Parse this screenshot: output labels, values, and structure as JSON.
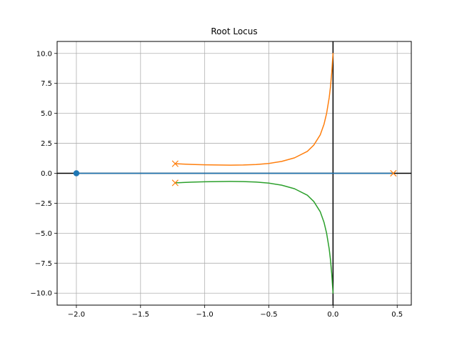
{
  "chart_data": {
    "type": "line",
    "title": "Root Locus",
    "xlabel": "",
    "ylabel": "",
    "xlim": [
      -2.15,
      0.61
    ],
    "ylim": [
      -11.0,
      11.0
    ],
    "grid": true,
    "xticks": [
      -2.0,
      -1.5,
      -1.0,
      -0.5,
      0.0,
      0.5
    ],
    "xtick_labels": [
      "−2.0",
      "−1.5",
      "−1.0",
      "−0.5",
      "0.0",
      "0.5"
    ],
    "yticks": [
      -10.0,
      -7.5,
      -5.0,
      -2.5,
      0.0,
      2.5,
      5.0,
      7.5,
      10.0
    ],
    "ytick_labels": [
      "−10.0",
      "−7.5",
      "−5.0",
      "−2.5",
      "0.0",
      "2.5",
      "5.0",
      "7.5",
      "10.0"
    ],
    "reference_lines": {
      "x": 0,
      "y": 0,
      "color": "#000000"
    },
    "series": [
      {
        "color": "#1f77b4",
        "x": [
          0.47,
          0.0,
          -0.5,
          -1.0,
          -1.5,
          -2.0
        ],
        "y": [
          0.0,
          0.0,
          0.0,
          0.0,
          0.0,
          0.0
        ]
      },
      {
        "color": "#ff7f0e",
        "x": [
          -1.23,
          -1.1,
          -1.0,
          -0.9,
          -0.8,
          -0.7,
          -0.6,
          -0.5,
          -0.4,
          -0.3,
          -0.2,
          -0.15,
          -0.1,
          -0.07,
          -0.05,
          -0.03,
          -0.02,
          -0.01,
          -0.005,
          0.0
        ],
        "y": [
          0.8,
          0.74,
          0.71,
          0.69,
          0.68,
          0.69,
          0.73,
          0.82,
          0.99,
          1.29,
          1.83,
          2.35,
          3.2,
          4.1,
          5.0,
          6.3,
          7.2,
          8.4,
          9.2,
          10.0
        ]
      },
      {
        "color": "#2ca02c",
        "x": [
          -1.23,
          -1.1,
          -1.0,
          -0.9,
          -0.8,
          -0.7,
          -0.6,
          -0.5,
          -0.4,
          -0.3,
          -0.2,
          -0.15,
          -0.1,
          -0.07,
          -0.05,
          -0.03,
          -0.02,
          -0.01,
          -0.005,
          0.0
        ],
        "y": [
          -0.8,
          -0.74,
          -0.71,
          -0.69,
          -0.68,
          -0.69,
          -0.73,
          -0.82,
          -0.99,
          -1.29,
          -1.83,
          -2.35,
          -3.2,
          -4.1,
          -5.0,
          -6.3,
          -7.2,
          -8.4,
          -9.2,
          -10.0
        ]
      }
    ],
    "poles": {
      "marker": "x",
      "color": "#ff7f0e",
      "x": [
        -1.23,
        -1.23,
        0.47
      ],
      "y": [
        0.8,
        -0.8,
        0.0
      ]
    },
    "zeros": {
      "marker": "o",
      "color": "#1f77b4",
      "x": [
        -2.0
      ],
      "y": [
        0.0
      ]
    }
  }
}
